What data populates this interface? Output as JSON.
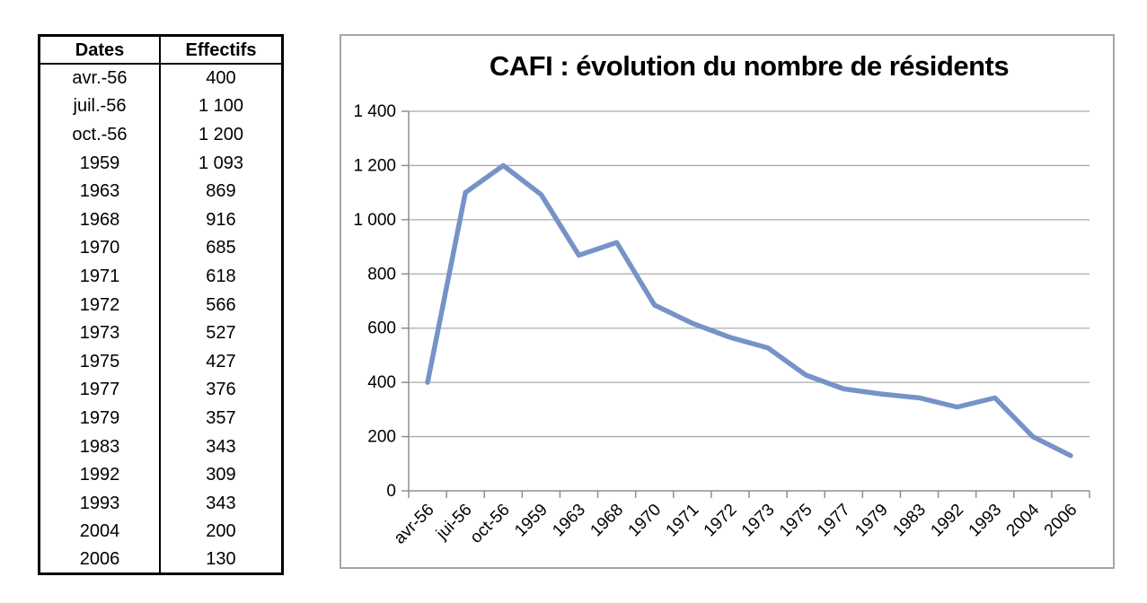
{
  "table": {
    "headers": [
      "Dates",
      "Effectifs"
    ],
    "rows": [
      [
        "avr.-56",
        "400"
      ],
      [
        "juil.-56",
        "1 100"
      ],
      [
        "oct.-56",
        "1 200"
      ],
      [
        "1959",
        "1 093"
      ],
      [
        "1963",
        "869"
      ],
      [
        "1968",
        "916"
      ],
      [
        "1970",
        "685"
      ],
      [
        "1971",
        "618"
      ],
      [
        "1972",
        "566"
      ],
      [
        "1973",
        "527"
      ],
      [
        "1975",
        "427"
      ],
      [
        "1977",
        "376"
      ],
      [
        "1979",
        "357"
      ],
      [
        "1983",
        "343"
      ],
      [
        "1992",
        "309"
      ],
      [
        "1993",
        "343"
      ],
      [
        "2004",
        "200"
      ],
      [
        "2006",
        "130"
      ]
    ]
  },
  "chart_data": {
    "type": "line",
    "title": "CAFI : évolution du nombre de résidents",
    "categories": [
      "avr-56",
      "jui-56",
      "oct-56",
      "1959",
      "1963",
      "1968",
      "1970",
      "1971",
      "1972",
      "1973",
      "1975",
      "1977",
      "1979",
      "1983",
      "1992",
      "1993",
      "2004",
      "2006"
    ],
    "values": [
      400,
      1100,
      1200,
      1093,
      869,
      916,
      685,
      618,
      566,
      527,
      427,
      376,
      357,
      343,
      309,
      343,
      200,
      130
    ],
    "xlabel": "",
    "ylabel": "",
    "ylim": [
      0,
      1400
    ],
    "ytick_step": 200,
    "ytick_labels": [
      "0",
      "200",
      "400",
      "600",
      "800",
      "1 000",
      "1 200",
      "1 400"
    ],
    "grid": true,
    "legend": "none",
    "line_color": "#7693c8"
  },
  "colors": {
    "gridline": "#ababab",
    "axis": "#8e8e8e",
    "chart_border": "#a6a6a6",
    "table_border": "#000000"
  }
}
